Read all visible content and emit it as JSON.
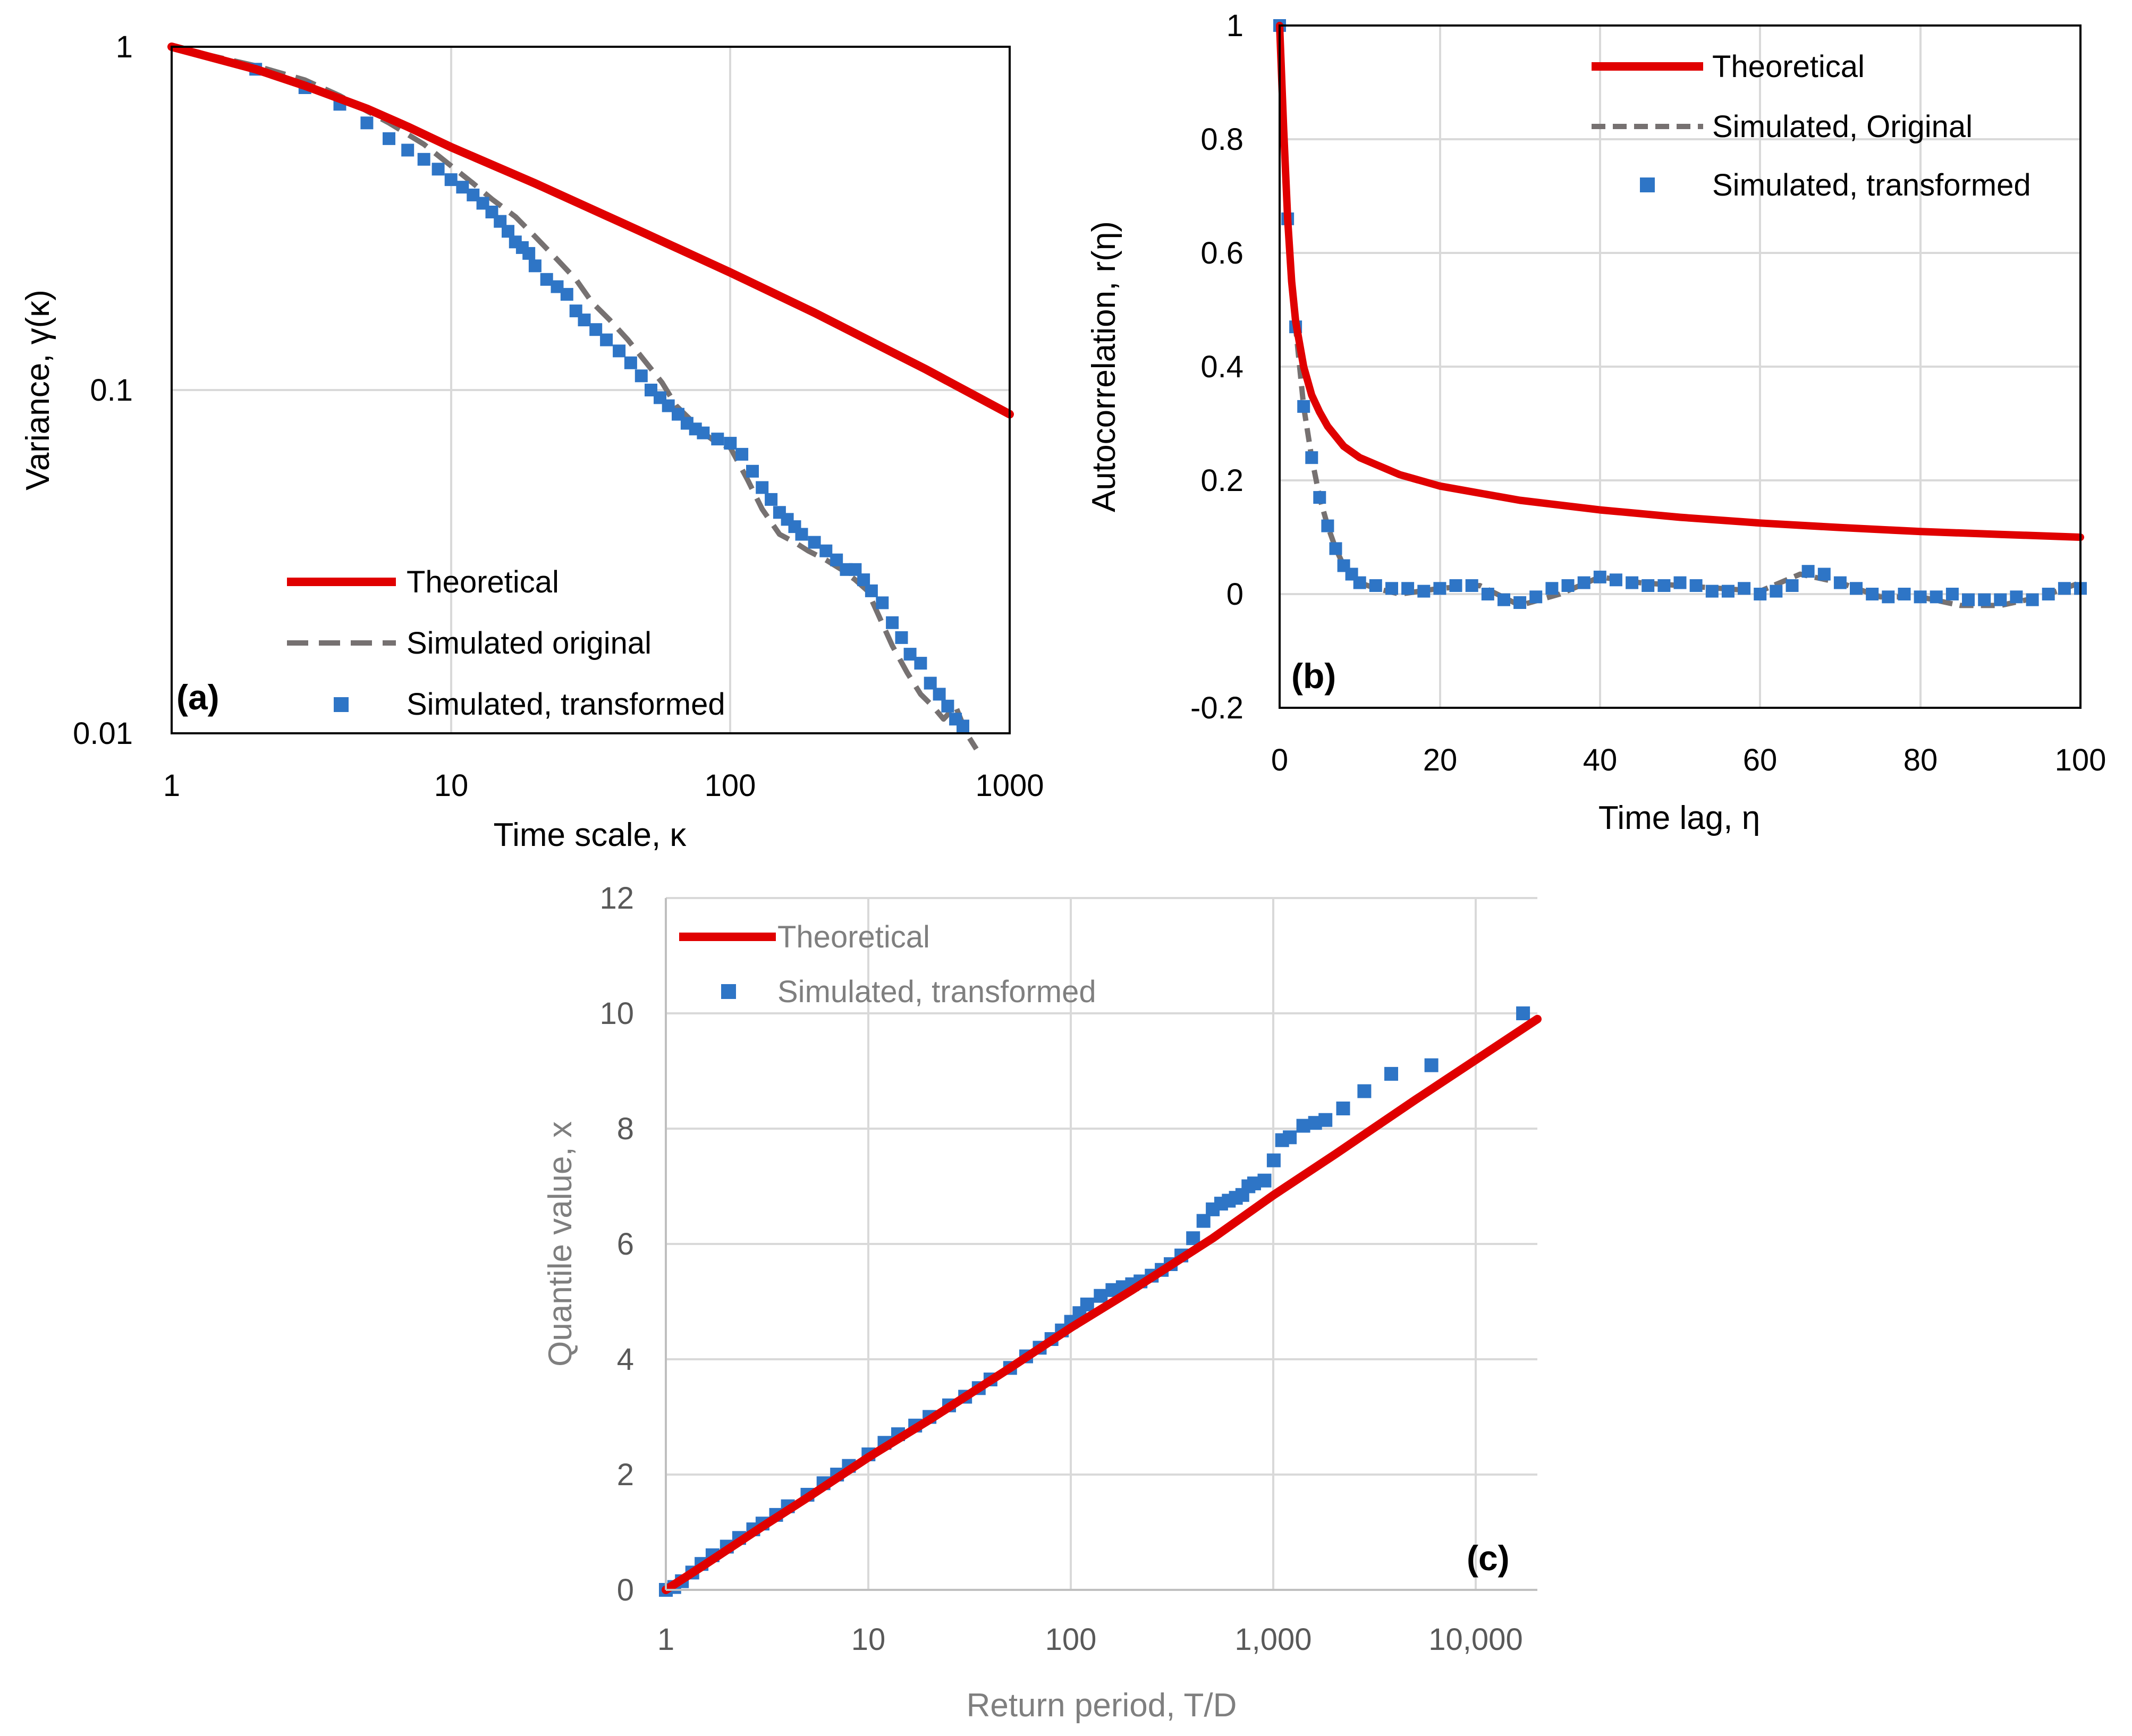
{
  "colors": {
    "theoretical": "#e00000",
    "original": "#767171",
    "transformed": "#2e75c6",
    "grid": "#d9d9d9"
  },
  "chart_data": [
    {
      "id": "a",
      "type": "line",
      "panel_label": "(a)",
      "xscale": "log",
      "yscale": "log",
      "xlim": [
        1,
        1000
      ],
      "ylim": [
        0.01,
        1
      ],
      "xticks": [
        1,
        10,
        100,
        1000
      ],
      "xtick_labels": [
        "1",
        "10",
        "100",
        "1000"
      ],
      "yticks": [
        0.01,
        0.1,
        1
      ],
      "ytick_labels": [
        "0.01",
        "0.1",
        "1"
      ],
      "xlabel": "Time scale, κ",
      "ylabel": "Variance, γ(κ)",
      "legend_position": "bottom-right",
      "legend": [
        "Theoretical",
        "Simulated original",
        "Simulated, transformed"
      ],
      "series": [
        {
          "name": "Theoretical",
          "kind": "line",
          "x": [
            1,
            2,
            3,
            5,
            7,
            10,
            20,
            50,
            100,
            200,
            500,
            1000
          ],
          "y": [
            1.0,
            0.86,
            0.77,
            0.66,
            0.585,
            0.51,
            0.4,
            0.285,
            0.22,
            0.168,
            0.115,
            0.085
          ]
        },
        {
          "name": "Simulated original",
          "kind": "dashed",
          "x": [
            1,
            2,
            3,
            4,
            5,
            6,
            8,
            10,
            12,
            14,
            17,
            20,
            24,
            28,
            32,
            37,
            43,
            50,
            57,
            64,
            72,
            80,
            90,
            100,
            115,
            130,
            150,
            170,
            190,
            220,
            250,
            280,
            310,
            340,
            380,
            430,
            480,
            530,
            580,
            640,
            700,
            760
          ],
          "y": [
            1.0,
            0.88,
            0.8,
            0.72,
            0.65,
            0.6,
            0.52,
            0.45,
            0.4,
            0.36,
            0.32,
            0.28,
            0.24,
            0.21,
            0.18,
            0.16,
            0.14,
            0.12,
            0.105,
            0.09,
            0.082,
            0.075,
            0.07,
            0.068,
            0.055,
            0.045,
            0.038,
            0.036,
            0.034,
            0.032,
            0.03,
            0.028,
            0.026,
            0.022,
            0.018,
            0.015,
            0.013,
            0.012,
            0.011,
            0.012,
            0.01,
            0.009
          ]
        },
        {
          "name": "Simulated, transformed",
          "kind": "markers",
          "x": [
            2,
            3,
            4,
            5,
            6,
            7,
            8,
            9,
            10,
            11,
            12,
            13,
            14,
            15,
            16,
            17,
            18,
            19,
            20,
            22,
            24,
            26,
            28,
            30,
            33,
            36,
            40,
            44,
            48,
            52,
            56,
            60,
            65,
            70,
            75,
            80,
            90,
            100,
            110,
            120,
            130,
            140,
            150,
            160,
            170,
            180,
            200,
            220,
            240,
            260,
            280,
            300,
            320,
            350,
            380,
            410,
            440,
            480,
            520,
            560,
            600,
            640,
            680
          ],
          "y": [
            0.86,
            0.76,
            0.68,
            0.6,
            0.54,
            0.5,
            0.47,
            0.44,
            0.41,
            0.39,
            0.37,
            0.35,
            0.33,
            0.31,
            0.29,
            0.27,
            0.26,
            0.25,
            0.23,
            0.21,
            0.2,
            0.19,
            0.17,
            0.16,
            0.15,
            0.14,
            0.13,
            0.12,
            0.11,
            0.1,
            0.095,
            0.09,
            0.085,
            0.08,
            0.077,
            0.075,
            0.072,
            0.07,
            0.065,
            0.058,
            0.052,
            0.048,
            0.044,
            0.042,
            0.04,
            0.038,
            0.036,
            0.034,
            0.032,
            0.03,
            0.03,
            0.028,
            0.026,
            0.024,
            0.021,
            0.019,
            0.017,
            0.016,
            0.014,
            0.013,
            0.012,
            0.011,
            0.0105
          ]
        }
      ]
    },
    {
      "id": "b",
      "type": "line",
      "panel_label": "(b)",
      "xscale": "linear",
      "yscale": "linear",
      "xlim": [
        0,
        100
      ],
      "ylim": [
        -0.2,
        1
      ],
      "xticks": [
        0,
        20,
        40,
        60,
        80,
        100
      ],
      "xtick_labels": [
        "0",
        "20",
        "40",
        "60",
        "80",
        "100"
      ],
      "yticks": [
        -0.2,
        0,
        0.2,
        0.4,
        0.6,
        0.8,
        1
      ],
      "ytick_labels": [
        "-0.2",
        "0",
        "0.2",
        "0.4",
        "0.6",
        "0.8",
        "1"
      ],
      "xlabel": "Time lag, η",
      "ylabel": "Autocorrelation, r(η)",
      "legend_position": "top-right",
      "legend": [
        "Theoretical",
        "Simulated, Original",
        "Simulated, transformed"
      ],
      "series": [
        {
          "name": "Theoretical",
          "kind": "line",
          "x": [
            0,
            0.5,
            1,
            1.5,
            2,
            3,
            4,
            5,
            6,
            8,
            10,
            15,
            20,
            30,
            40,
            50,
            60,
            70,
            80,
            90,
            100
          ],
          "y": [
            1.0,
            0.82,
            0.66,
            0.55,
            0.48,
            0.4,
            0.35,
            0.32,
            0.295,
            0.26,
            0.24,
            0.21,
            0.19,
            0.165,
            0.148,
            0.135,
            0.125,
            0.117,
            0.11,
            0.105,
            0.1
          ]
        },
        {
          "name": "Simulated, Original",
          "kind": "dashed",
          "x": [
            0,
            1,
            2,
            3,
            4,
            5,
            6,
            7,
            8,
            10,
            12,
            15,
            20,
            25,
            30,
            35,
            40,
            45,
            50,
            55,
            60,
            65,
            70,
            75,
            80,
            85,
            90,
            95,
            100
          ],
          "y": [
            1.0,
            0.66,
            0.47,
            0.33,
            0.24,
            0.17,
            0.12,
            0.08,
            0.05,
            0.02,
            0.01,
            0.0,
            0.01,
            0.015,
            -0.02,
            0.0,
            0.03,
            0.02,
            0.015,
            0.01,
            0.005,
            0.035,
            0.02,
            -0.005,
            -0.005,
            -0.02,
            -0.02,
            -0.005,
            0.02
          ]
        },
        {
          "name": "Simulated, transformed",
          "kind": "markers",
          "x": [
            0,
            1,
            2,
            3,
            4,
            5,
            6,
            7,
            8,
            9,
            10,
            12,
            14,
            16,
            18,
            20,
            22,
            24,
            26,
            28,
            30,
            32,
            34,
            36,
            38,
            40,
            42,
            44,
            46,
            48,
            50,
            52,
            54,
            56,
            58,
            60,
            62,
            64,
            66,
            68,
            70,
            72,
            74,
            76,
            78,
            80,
            82,
            84,
            86,
            88,
            90,
            92,
            94,
            96,
            98,
            100
          ],
          "y": [
            1.0,
            0.66,
            0.47,
            0.33,
            0.24,
            0.17,
            0.12,
            0.08,
            0.05,
            0.035,
            0.02,
            0.015,
            0.01,
            0.01,
            0.005,
            0.01,
            0.015,
            0.015,
            0.0,
            -0.01,
            -0.015,
            -0.005,
            0.01,
            0.015,
            0.02,
            0.03,
            0.025,
            0.02,
            0.015,
            0.015,
            0.02,
            0.015,
            0.005,
            0.005,
            0.01,
            0.0,
            0.005,
            0.015,
            0.04,
            0.035,
            0.02,
            0.01,
            0.0,
            -0.005,
            0.0,
            -0.005,
            -0.005,
            0.0,
            -0.01,
            -0.01,
            -0.01,
            -0.005,
            -0.01,
            0.0,
            0.01,
            0.01
          ]
        }
      ]
    },
    {
      "id": "c",
      "type": "line",
      "panel_label": "(c)",
      "xscale": "log",
      "yscale": "linear",
      "xlim": [
        1,
        20000
      ],
      "ylim": [
        0,
        12
      ],
      "xticks": [
        1,
        10,
        100,
        1000,
        10000
      ],
      "xtick_labels": [
        "1",
        "10",
        "100",
        "1,000",
        "10,000"
      ],
      "yticks": [
        0,
        2,
        4,
        6,
        8,
        10,
        12
      ],
      "ytick_labels": [
        "0",
        "2",
        "4",
        "6",
        "8",
        "10",
        "12"
      ],
      "xlabel": "Return period, T/D",
      "ylabel": "Quantile value, x",
      "legend_position": "top-left",
      "legend": [
        "Theoretical",
        "Simulated, transformed"
      ],
      "series": [
        {
          "name": "Theoretical",
          "kind": "line",
          "x": [
            1,
            1.2,
            1.5,
            2,
            3,
            5,
            10,
            20,
            50,
            100,
            200,
            500,
            1000,
            2000,
            5000,
            10000,
            20000
          ],
          "y": [
            0.0,
            0.18,
            0.4,
            0.69,
            1.1,
            1.6,
            2.3,
            2.95,
            3.85,
            4.55,
            5.2,
            6.1,
            6.85,
            7.55,
            8.5,
            9.2,
            9.9
          ]
        },
        {
          "name": "Simulated, transformed",
          "kind": "markers",
          "x": [
            1,
            1.1,
            1.2,
            1.35,
            1.5,
            1.7,
            2,
            2.3,
            2.7,
            3,
            3.5,
            4,
            5,
            6,
            7,
            8,
            10,
            12,
            14,
            17,
            20,
            25,
            30,
            35,
            40,
            50,
            60,
            70,
            80,
            90,
            100,
            110,
            120,
            140,
            160,
            180,
            200,
            220,
            250,
            280,
            310,
            350,
            400,
            450,
            500,
            550,
            600,
            650,
            700,
            750,
            800,
            900,
            1000,
            1100,
            1200,
            1400,
            1600,
            1800,
            2200,
            2800,
            3800,
            6000,
            17000
          ],
          "y": [
            0.0,
            0.05,
            0.15,
            0.3,
            0.45,
            0.6,
            0.75,
            0.9,
            1.05,
            1.15,
            1.3,
            1.45,
            1.65,
            1.85,
            2.0,
            2.15,
            2.35,
            2.55,
            2.7,
            2.85,
            3.0,
            3.2,
            3.35,
            3.5,
            3.65,
            3.85,
            4.05,
            4.2,
            4.35,
            4.5,
            4.65,
            4.8,
            4.95,
            5.1,
            5.2,
            5.25,
            5.3,
            5.35,
            5.45,
            5.55,
            5.65,
            5.8,
            6.1,
            6.4,
            6.6,
            6.7,
            6.75,
            6.8,
            6.85,
            7.0,
            7.05,
            7.1,
            7.45,
            7.8,
            7.85,
            8.05,
            8.1,
            8.15,
            8.35,
            8.65,
            8.95,
            9.1,
            10.0
          ]
        }
      ]
    }
  ]
}
